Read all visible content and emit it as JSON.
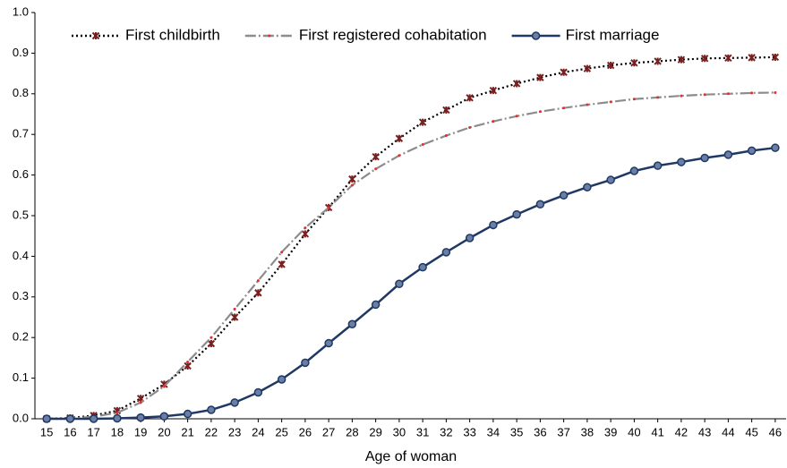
{
  "chart_data": {
    "type": "line",
    "x_label": "Age of woman",
    "x": [
      15,
      16,
      17,
      18,
      19,
      20,
      21,
      22,
      23,
      24,
      25,
      26,
      27,
      28,
      29,
      30,
      31,
      32,
      33,
      34,
      35,
      36,
      37,
      38,
      39,
      40,
      41,
      42,
      43,
      44,
      45,
      46
    ],
    "xlim": [
      14.5,
      46.5
    ],
    "ylim": [
      0,
      1
    ],
    "yticks": [
      {
        "value": 0,
        "label": "0.0"
      },
      0.1,
      0.2,
      0.3,
      0.4,
      0.5,
      0.6,
      0.7,
      0.8,
      0.9,
      {
        "value": 1,
        "label": "1.0"
      }
    ],
    "grid": false,
    "legend": "top",
    "series": [
      {
        "name": "First childbirth",
        "color": "#000000",
        "marker_color": "#7a1f1f",
        "dash": "dotted",
        "marker": "cross",
        "values": [
          0,
          0.002,
          0.008,
          0.02,
          0.05,
          0.085,
          0.13,
          0.185,
          0.25,
          0.31,
          0.38,
          0.455,
          0.52,
          0.59,
          0.645,
          0.69,
          0.73,
          0.76,
          0.79,
          0.808,
          0.825,
          0.84,
          0.853,
          0.862,
          0.87,
          0.876,
          0.88,
          0.884,
          0.887,
          0.888,
          0.889,
          0.89
        ]
      },
      {
        "name": "First registered cohabitation",
        "color": "#8c8c8c",
        "marker_color": "#e03030",
        "dash": "dashdot",
        "marker": "dot",
        "values": [
          0,
          0.001,
          0.005,
          0.015,
          0.04,
          0.08,
          0.14,
          0.2,
          0.27,
          0.34,
          0.41,
          0.47,
          0.52,
          0.575,
          0.615,
          0.648,
          0.675,
          0.697,
          0.717,
          0.732,
          0.745,
          0.756,
          0.765,
          0.773,
          0.78,
          0.787,
          0.791,
          0.795,
          0.798,
          0.8,
          0.802,
          0.803
        ]
      },
      {
        "name": "First marriage",
        "color": "#1f3864",
        "marker_color": "#6a7fa6",
        "dash": "solid",
        "marker": "circle",
        "values": [
          0,
          0,
          0,
          0.001,
          0.003,
          0.006,
          0.012,
          0.022,
          0.04,
          0.065,
          0.097,
          0.138,
          0.186,
          0.233,
          0.281,
          0.332,
          0.373,
          0.41,
          0.445,
          0.477,
          0.503,
          0.528,
          0.55,
          0.57,
          0.588,
          0.61,
          0.623,
          0.632,
          0.642,
          0.65,
          0.66,
          0.667
        ]
      }
    ]
  }
}
